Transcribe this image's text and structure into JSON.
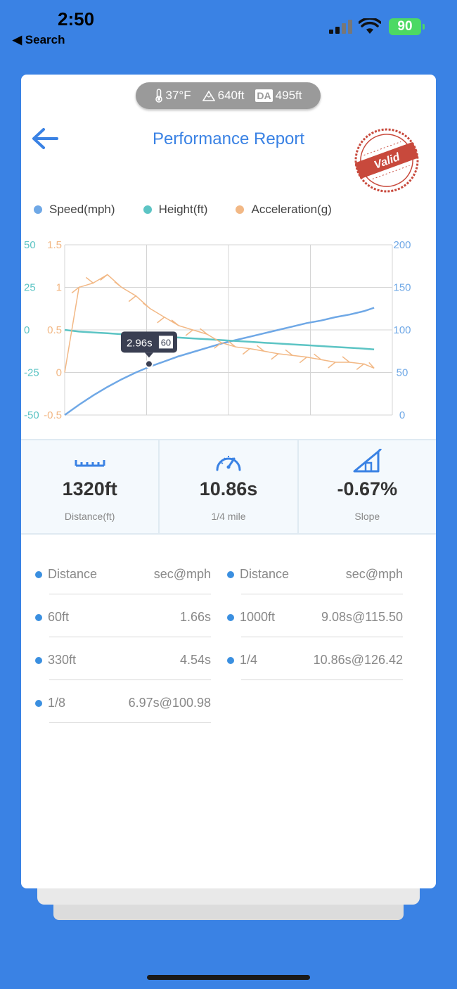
{
  "status_bar": {
    "time": "2:50",
    "back_label": "◀ Search",
    "battery": "90"
  },
  "weather": {
    "temperature": "37°F",
    "altitude": "640ft",
    "da_badge": "DA",
    "density_altitude": "495ft"
  },
  "header": {
    "title": "Performance Report",
    "stamp_text": "Valid"
  },
  "legend": [
    {
      "label": "Speed(mph)",
      "color": "#6fa8e6"
    },
    {
      "label": "Height(ft)",
      "color": "#5cc4c4"
    },
    {
      "label": "Acceleration(g)",
      "color": "#f2b885"
    }
  ],
  "chart_data": {
    "type": "line",
    "x": [
      0,
      0.5,
      1,
      1.5,
      2,
      2.5,
      3,
      3.5,
      4,
      4.5,
      5,
      5.5,
      6,
      6.5,
      7,
      7.5,
      8,
      8.5,
      9,
      9.5,
      10,
      10.5,
      10.86
    ],
    "series": [
      {
        "name": "Speed(mph)",
        "axis": "right",
        "values": [
          0,
          12,
          23,
          33,
          42,
          50,
          57,
          63,
          69,
          74,
          79,
          84,
          88,
          92,
          96,
          100,
          104,
          108,
          111,
          115,
          118,
          122,
          126
        ]
      },
      {
        "name": "Height(ft)",
        "axis": "left-outer",
        "values": [
          0,
          -1,
          -1.5,
          -2,
          -2.5,
          -3,
          -3.5,
          -4,
          -4.5,
          -5,
          -5.5,
          -6,
          -6.5,
          -7,
          -7.5,
          -8,
          -8.5,
          -9,
          -9.5,
          -10,
          -10.5,
          -11,
          -11.5
        ]
      },
      {
        "name": "Acceleration(g)",
        "axis": "left-inner",
        "values": [
          0,
          1.0,
          1.05,
          1.15,
          1.0,
          0.9,
          0.75,
          0.65,
          0.55,
          0.5,
          0.45,
          0.35,
          0.3,
          0.28,
          0.25,
          0.22,
          0.2,
          0.18,
          0.15,
          0.12,
          0.12,
          0.1,
          0.05
        ]
      }
    ],
    "left_outer_axis": {
      "ticks": [
        "50",
        "25",
        "0",
        "-25",
        "-50"
      ],
      "ylim": [
        -50,
        50
      ],
      "color": "#5cc4c4"
    },
    "left_inner_axis": {
      "ticks": [
        "1.5",
        "1",
        "0.5",
        "0",
        "-0.5"
      ],
      "ylim": [
        -0.5,
        1.5
      ],
      "color": "#f2b885"
    },
    "right_axis": {
      "ticks": [
        "200",
        "150",
        "100",
        "50",
        "0"
      ],
      "ylim": [
        0,
        200
      ],
      "color": "#6fa8e6"
    },
    "tooltip": {
      "time": "2.96s",
      "speed": "60",
      "x": 2.96,
      "y": 60
    },
    "grid": true,
    "legend_position": "top"
  },
  "stats": [
    {
      "icon": "ruler-icon",
      "value": "1320ft",
      "label": "Distance(ft)"
    },
    {
      "icon": "speedometer-icon",
      "value": "10.86s",
      "label": "1/4 mile"
    },
    {
      "icon": "slope-icon",
      "value": "-0.67%",
      "label": "Slope"
    }
  ],
  "splits": {
    "header": {
      "name": "Distance",
      "value": "sec@mph"
    },
    "left": [
      {
        "name": "60ft",
        "value": "1.66s"
      },
      {
        "name": "330ft",
        "value": "4.54s"
      },
      {
        "name": "1/8",
        "value": "6.97s@100.98"
      }
    ],
    "right": [
      {
        "name": "1000ft",
        "value": "9.08s@115.50"
      },
      {
        "name": "1/4",
        "value": "10.86s@126.42"
      }
    ]
  }
}
